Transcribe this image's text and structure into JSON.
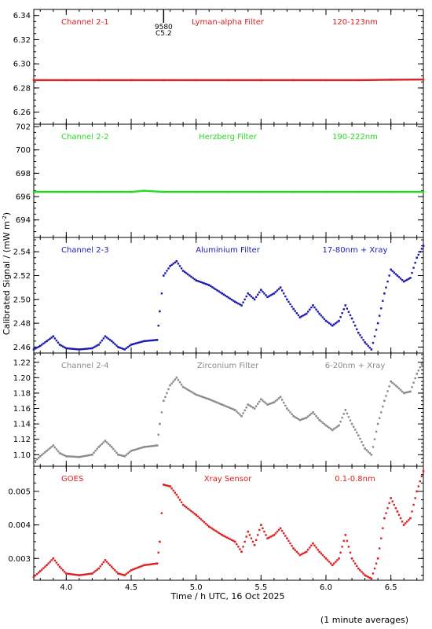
{
  "figure": {
    "ylabel": "Calibrated Signal / (mW m",
    "ylabel_sup": "-2",
    "ylabel_end": ")",
    "xlabel": "Time / h UTC, 16 Oct 2025",
    "footnote": "(1 minute averages)"
  },
  "chart_data": [
    {
      "type": "scatter",
      "channel": "Channel 2-1",
      "filter": "Lyman-alpha Filter",
      "band": "120-123nm",
      "color": "#dd2020",
      "xlim": [
        3.75,
        6.75
      ],
      "ylim": [
        6.25,
        6.345
      ],
      "yticks": [
        6.26,
        6.28,
        6.3,
        6.32,
        6.34
      ],
      "ytick_labels": [
        "6.26",
        "6.28",
        "6.30",
        "6.32",
        "6.34"
      ],
      "event_marker": {
        "x": 4.75,
        "labels": [
          "9580",
          "C5.2"
        ]
      },
      "x": [
        3.75,
        4.0,
        4.25,
        4.5,
        4.75,
        5.0,
        5.25,
        5.5,
        5.75,
        6.0,
        6.25,
        6.5,
        6.75
      ],
      "y": [
        6.2865,
        6.2865,
        6.2865,
        6.2865,
        6.2865,
        6.2865,
        6.2865,
        6.2865,
        6.2865,
        6.2865,
        6.2865,
        6.2868,
        6.287
      ]
    },
    {
      "type": "scatter",
      "channel": "Channel 2-2",
      "filter": "Herzberg Filter",
      "band": "190-222nm",
      "color": "#22dd22",
      "xlim": [
        3.75,
        6.75
      ],
      "ylim": [
        692.5,
        702.2
      ],
      "yticks": [
        694,
        696,
        698,
        700,
        702
      ],
      "ytick_labels": [
        "694",
        "696",
        "698",
        "700",
        "702"
      ],
      "x": [
        3.75,
        4.0,
        4.25,
        4.5,
        4.6,
        4.75,
        5.0,
        5.25,
        5.5,
        5.75,
        6.0,
        6.25,
        6.5,
        6.75
      ],
      "y": [
        696.4,
        696.4,
        696.4,
        696.4,
        696.5,
        696.4,
        696.4,
        696.4,
        696.4,
        696.4,
        696.4,
        696.4,
        696.4,
        696.4
      ]
    },
    {
      "type": "scatter",
      "channel": "Channel 2-3",
      "filter": "Aluminium Filter",
      "band": "17-80nm + Xray",
      "color": "#1a1ab0",
      "xlim": [
        3.75,
        6.75
      ],
      "ylim": [
        2.455,
        2.552
      ],
      "yticks": [
        2.46,
        2.48,
        2.5,
        2.52,
        2.54
      ],
      "ytick_labels": [
        "2.46",
        "2.48",
        "2.50",
        "2.52",
        "2.54"
      ],
      "x": [
        3.75,
        3.8,
        3.85,
        3.9,
        3.95,
        4.0,
        4.1,
        4.2,
        4.25,
        4.3,
        4.35,
        4.4,
        4.45,
        4.5,
        4.6,
        4.7,
        4.72,
        4.75,
        4.8,
        4.85,
        4.9,
        5.0,
        5.1,
        5.2,
        5.3,
        5.35,
        5.4,
        5.45,
        5.5,
        5.55,
        5.6,
        5.65,
        5.7,
        5.75,
        5.8,
        5.85,
        5.9,
        5.95,
        6.0,
        6.05,
        6.1,
        6.15,
        6.2,
        6.25,
        6.3,
        6.35,
        6.4,
        6.45,
        6.5,
        6.55,
        6.6,
        6.65,
        6.7,
        6.75
      ],
      "y": [
        2.458,
        2.461,
        2.465,
        2.469,
        2.462,
        2.459,
        2.458,
        2.459,
        2.462,
        2.469,
        2.465,
        2.46,
        2.458,
        2.462,
        2.465,
        2.466,
        2.49,
        2.52,
        2.528,
        2.532,
        2.524,
        2.516,
        2.512,
        2.505,
        2.498,
        2.495,
        2.505,
        2.5,
        2.508,
        2.502,
        2.505,
        2.51,
        2.5,
        2.492,
        2.485,
        2.488,
        2.495,
        2.488,
        2.482,
        2.478,
        2.482,
        2.495,
        2.484,
        2.472,
        2.464,
        2.458,
        2.48,
        2.505,
        2.525,
        2.52,
        2.515,
        2.518,
        2.535,
        2.545
      ]
    },
    {
      "type": "scatter",
      "channel": "Channel 2-4",
      "filter": "Zirconium Filter",
      "band": "6-20nm + Xray",
      "color": "#8a8a8a",
      "xlim": [
        3.75,
        6.75
      ],
      "ylim": [
        1.085,
        1.232
      ],
      "yticks": [
        1.1,
        1.12,
        1.14,
        1.16,
        1.18,
        1.2,
        1.22
      ],
      "ytick_labels": [
        "1.10",
        "1.12",
        "1.14",
        "1.16",
        "1.18",
        "1.20",
        "1.22"
      ],
      "x": [
        3.75,
        3.8,
        3.85,
        3.9,
        3.95,
        4.0,
        4.1,
        4.2,
        4.25,
        4.3,
        4.35,
        4.4,
        4.45,
        4.5,
        4.6,
        4.7,
        4.72,
        4.75,
        4.8,
        4.85,
        4.9,
        5.0,
        5.1,
        5.2,
        5.3,
        5.35,
        5.4,
        5.45,
        5.5,
        5.55,
        5.6,
        5.65,
        5.7,
        5.75,
        5.8,
        5.85,
        5.9,
        5.95,
        6.0,
        6.05,
        6.1,
        6.15,
        6.2,
        6.25,
        6.3,
        6.35,
        6.4,
        6.45,
        6.5,
        6.55,
        6.6,
        6.65,
        6.7,
        6.75
      ],
      "y": [
        1.09,
        1.098,
        1.105,
        1.112,
        1.102,
        1.098,
        1.097,
        1.1,
        1.11,
        1.118,
        1.11,
        1.1,
        1.098,
        1.105,
        1.11,
        1.112,
        1.14,
        1.17,
        1.19,
        1.2,
        1.188,
        1.178,
        1.172,
        1.165,
        1.158,
        1.15,
        1.165,
        1.16,
        1.172,
        1.165,
        1.168,
        1.175,
        1.16,
        1.15,
        1.145,
        1.148,
        1.155,
        1.145,
        1.138,
        1.132,
        1.138,
        1.158,
        1.14,
        1.125,
        1.108,
        1.1,
        1.14,
        1.17,
        1.195,
        1.188,
        1.18,
        1.182,
        1.205,
        1.222
      ]
    },
    {
      "type": "scatter",
      "channel": "GOES",
      "filter": "Xray Sensor",
      "band": "0.1-0.8nm",
      "color": "#dd2020",
      "xlim": [
        3.75,
        6.75
      ],
      "ylim": [
        0.00235,
        0.00575
      ],
      "yticks": [
        0.003,
        0.004,
        0.005
      ],
      "ytick_labels": [
        "0.003",
        "0.004",
        "0.005"
      ],
      "x": [
        3.75,
        3.8,
        3.85,
        3.9,
        3.95,
        4.0,
        4.1,
        4.2,
        4.25,
        4.3,
        4.35,
        4.4,
        4.45,
        4.5,
        4.6,
        4.7,
        4.72,
        4.75,
        4.8,
        4.85,
        4.9,
        5.0,
        5.1,
        5.2,
        5.3,
        5.35,
        5.4,
        5.45,
        5.5,
        5.55,
        5.6,
        5.65,
        5.7,
        5.75,
        5.8,
        5.85,
        5.9,
        5.95,
        6.0,
        6.05,
        6.1,
        6.15,
        6.2,
        6.25,
        6.3,
        6.35,
        6.4,
        6.45,
        6.5,
        6.55,
        6.6,
        6.65,
        6.7,
        6.75
      ],
      "y": [
        0.00245,
        0.00262,
        0.0028,
        0.003,
        0.00275,
        0.00255,
        0.0025,
        0.00255,
        0.0027,
        0.00295,
        0.00275,
        0.00255,
        0.0025,
        0.00265,
        0.0028,
        0.00285,
        0.0035,
        0.0052,
        0.00515,
        0.0049,
        0.0046,
        0.0043,
        0.00395,
        0.0037,
        0.0035,
        0.0032,
        0.0038,
        0.0034,
        0.004,
        0.0036,
        0.0037,
        0.0039,
        0.0036,
        0.0033,
        0.0031,
        0.0032,
        0.00345,
        0.0032,
        0.003,
        0.0028,
        0.003,
        0.0037,
        0.003,
        0.0027,
        0.0025,
        0.0024,
        0.003,
        0.0042,
        0.0048,
        0.0044,
        0.004,
        0.0042,
        0.005,
        0.0056
      ]
    }
  ],
  "xaxis": {
    "ticks": [
      4.0,
      4.5,
      5.0,
      5.5,
      6.0,
      6.5
    ],
    "tick_labels": [
      "4.0",
      "4.5",
      "5.0",
      "5.5",
      "6.0",
      "6.5"
    ],
    "minor_step": 0.1
  }
}
